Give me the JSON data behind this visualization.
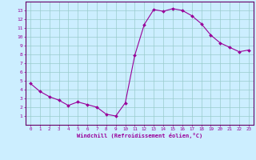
{
  "x": [
    0,
    1,
    2,
    3,
    4,
    5,
    6,
    7,
    8,
    9,
    10,
    11,
    12,
    13,
    14,
    15,
    16,
    17,
    18,
    19,
    20,
    21,
    22,
    23
  ],
  "y": [
    4.7,
    3.8,
    3.2,
    2.8,
    2.2,
    2.6,
    2.3,
    2.0,
    1.2,
    1.0,
    2.5,
    7.9,
    11.4,
    13.1,
    12.9,
    13.2,
    13.0,
    12.4,
    11.5,
    10.2,
    9.3,
    8.8,
    8.3,
    8.5
  ],
  "line_color": "#990099",
  "marker_color": "#990099",
  "bg_color": "#cceeff",
  "grid_color": "#99cccc",
  "axis_color": "#660066",
  "tick_color": "#990099",
  "xlabel": "Windchill (Refroidissement éolien,°C)",
  "xlabel_color": "#990099",
  "xlim": [
    -0.5,
    23.5
  ],
  "ylim": [
    0,
    14
  ],
  "yticks": [
    1,
    2,
    3,
    4,
    5,
    6,
    7,
    8,
    9,
    10,
    11,
    12,
    13
  ],
  "xticks": [
    0,
    1,
    2,
    3,
    4,
    5,
    6,
    7,
    8,
    9,
    10,
    11,
    12,
    13,
    14,
    15,
    16,
    17,
    18,
    19,
    20,
    21,
    22,
    23
  ]
}
